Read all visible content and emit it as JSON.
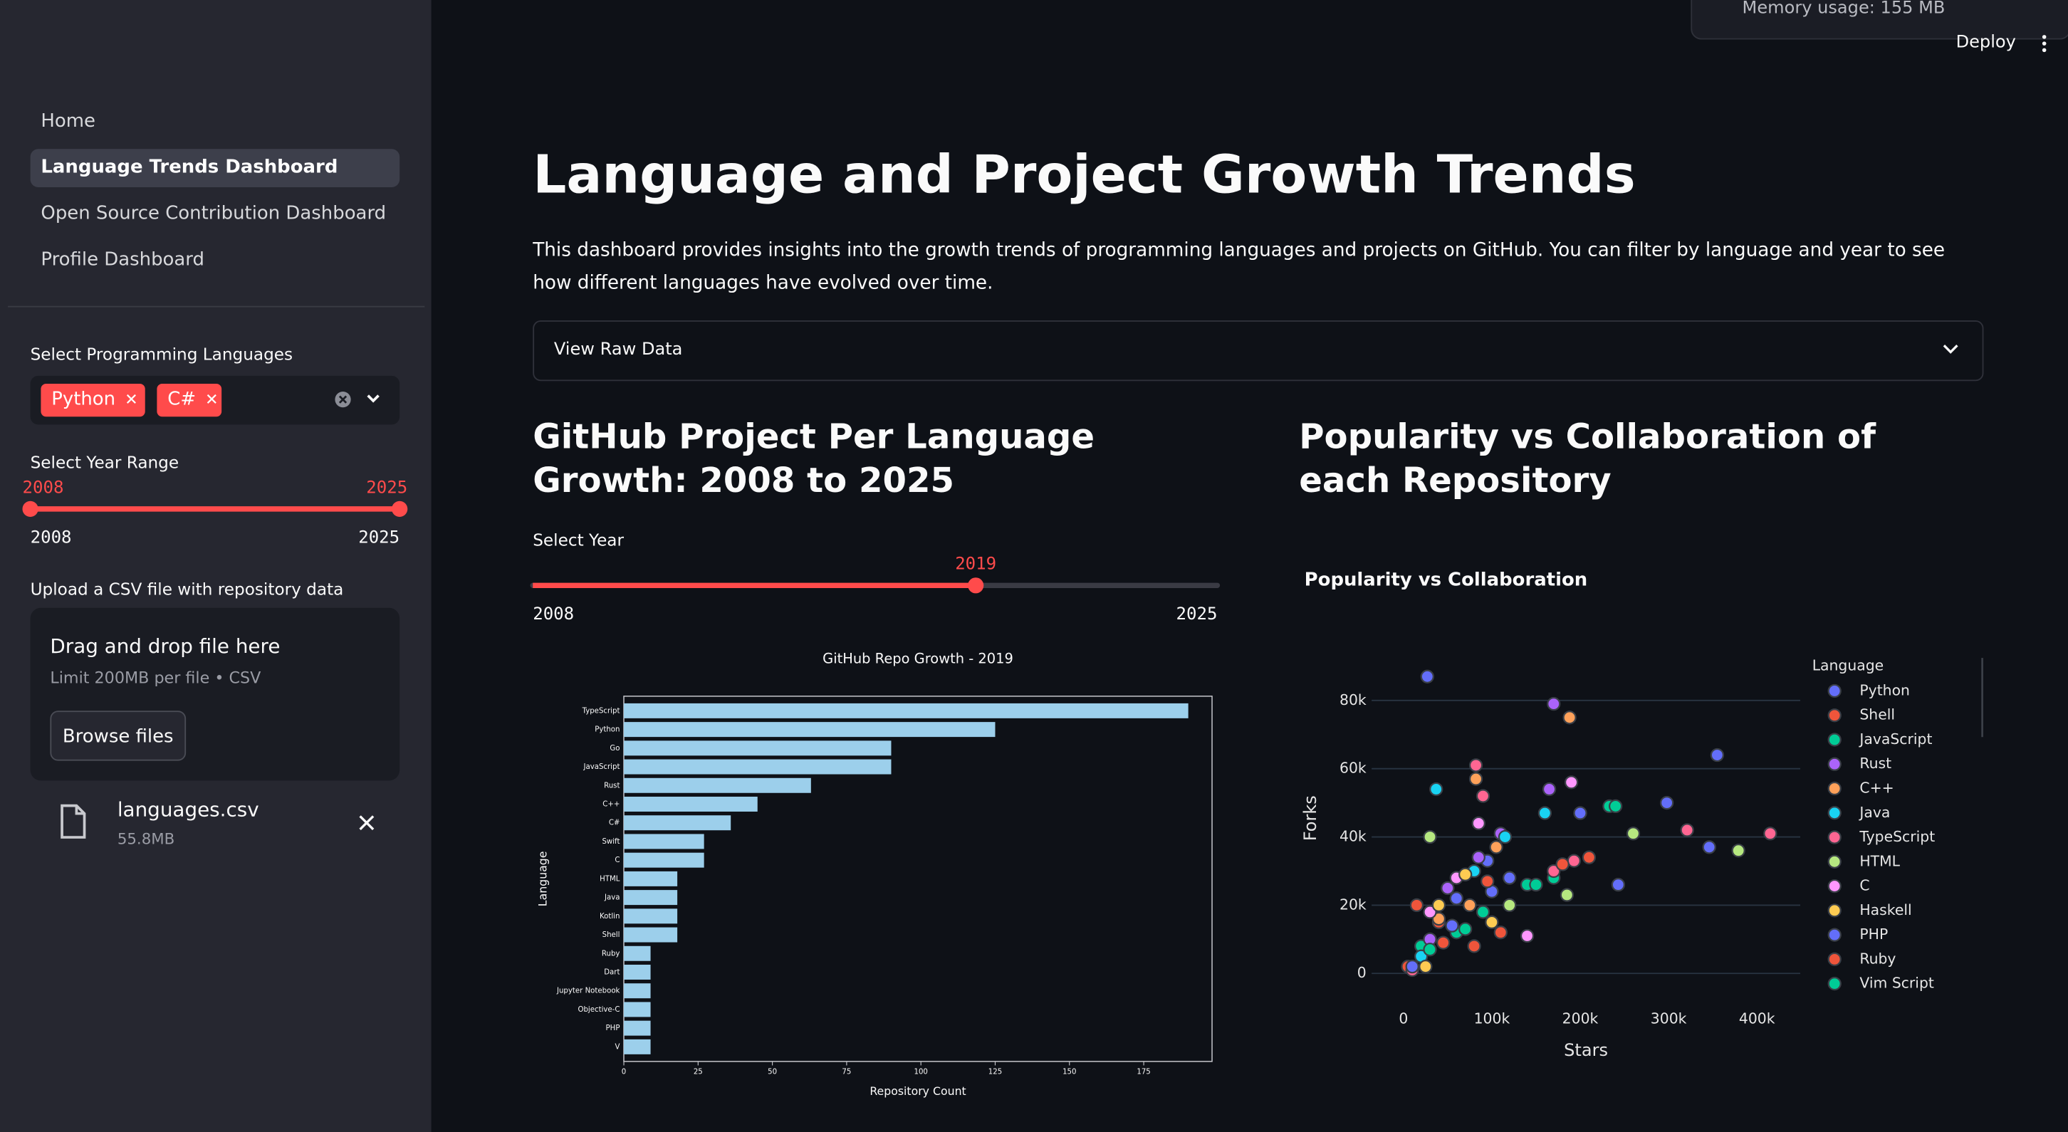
{
  "header": {
    "memory": "Memory usage: 155 MB",
    "deploy": "Deploy"
  },
  "sidebar": {
    "nav": [
      "Home",
      "Language Trends Dashboard",
      "Open Source Contribution Dashboard",
      "Profile Dashboard"
    ],
    "languages_select": {
      "label": "Select Programming Languages",
      "chips": [
        "Python",
        "C#"
      ]
    },
    "year_range": {
      "label": "Select Year Range",
      "min": 2008,
      "max": 2025,
      "values": [
        2008,
        2025
      ]
    },
    "upload": {
      "label": "Upload a CSV file with repository data",
      "drop_text": "Drag and drop file here",
      "limit": "Limit 200MB per file • CSV",
      "button": "Browse files",
      "file_name": "languages.csv",
      "file_size": "55.8MB"
    }
  },
  "main": {
    "title": "Language and Project Growth Trends",
    "description": "This dashboard provides insights into the growth trends of programming languages and projects on GitHub. You can filter by language and year to see how different languages have evolved over time.",
    "expander": "View Raw Data",
    "left_heading": "GitHub Project Per Language Growth: 2008 to 2025",
    "year_slider": {
      "label": "Select Year",
      "value": 2019,
      "min": 2008,
      "max": 2025
    },
    "right_heading": "Popularity vs Collaboration of each Repository"
  },
  "bar_chart": {
    "type": "bar",
    "title": "GitHub Repo Growth - 2019",
    "x_label": "Repository Count",
    "y_label": "Language",
    "color": "#9ccfeb",
    "categories": [
      "TypeScript",
      "Python",
      "Go",
      "JavaScript",
      "Rust",
      "C++",
      "C#",
      "Swift",
      "C",
      "HTML",
      "Java",
      "Kotlin",
      "Shell",
      "Ruby",
      "Dart",
      "Jupyter Notebook",
      "Objective-C",
      "PHP",
      "V"
    ],
    "values": [
      190,
      125,
      90,
      90,
      63,
      45,
      36,
      27,
      27,
      18,
      18,
      18,
      18,
      9,
      9,
      9,
      9,
      9,
      9
    ],
    "xlim": [
      0,
      198
    ],
    "xticks": [
      0,
      25,
      50,
      75,
      100,
      125,
      150,
      175
    ]
  },
  "scatter_chart": {
    "type": "scatter",
    "title": "Popularity vs Collaboration",
    "x_label": "Stars",
    "y_label": "Forks",
    "legend_title": "Language",
    "xlim": [
      -36000,
      449000
    ],
    "ylim": [
      -3000,
      94000
    ],
    "xticks": [
      0,
      {
        "value": 100000,
        "label": "100k"
      },
      {
        "value": 200000,
        "label": "200k"
      },
      {
        "value": 300000,
        "label": "300k"
      },
      {
        "value": 400000,
        "label": "400k"
      }
    ],
    "yticks": [
      0,
      {
        "value": 20000,
        "label": "20k"
      },
      {
        "value": 40000,
        "label": "40k"
      },
      {
        "value": 60000,
        "label": "60k"
      },
      {
        "value": 80000,
        "label": "80k"
      }
    ],
    "grid": true,
    "series": [
      {
        "name": "Python",
        "color": "#636efa",
        "x": [
          27000,
          355000,
          298000,
          346000,
          243000,
          95000,
          60000,
          120000
        ],
        "y": [
          87000,
          64000,
          50000,
          37000,
          26000,
          33000,
          22000,
          28000
        ]
      },
      {
        "name": "Shell",
        "color": "#ef553b",
        "x": [
          40000,
          80000,
          15000,
          110000,
          5000
        ],
        "y": [
          15000,
          8000,
          20000,
          12000,
          2000
        ]
      },
      {
        "name": "JavaScript",
        "color": "#00cc96",
        "x": [
          233000,
          170000,
          60000,
          140000,
          20000,
          90000
        ],
        "y": [
          49000,
          28000,
          12000,
          26000,
          8000,
          18000
        ]
      },
      {
        "name": "Rust",
        "color": "#ab63fa",
        "x": [
          170000,
          110000,
          85000,
          50000,
          30000,
          165000
        ],
        "y": [
          79000,
          41000,
          34000,
          25000,
          10000,
          54000
        ]
      },
      {
        "name": "C++",
        "color": "#ffa15a",
        "x": [
          188000,
          82000,
          75000,
          40000,
          105000
        ],
        "y": [
          75000,
          57000,
          20000,
          16000,
          37000
        ]
      },
      {
        "name": "Java",
        "color": "#19d3f3",
        "x": [
          37000,
          160000,
          80000,
          115000,
          20000
        ],
        "y": [
          54000,
          47000,
          30000,
          40000,
          5000
        ]
      },
      {
        "name": "TypeScript",
        "color": "#ff6692",
        "x": [
          415000,
          321000,
          82000,
          90000,
          193000,
          170000,
          10000
        ],
        "y": [
          41000,
          42000,
          61000,
          52000,
          33000,
          30000,
          1000
        ]
      },
      {
        "name": "HTML",
        "color": "#b6e880",
        "x": [
          379000,
          260000,
          185000,
          30000,
          120000
        ],
        "y": [
          36000,
          41000,
          23000,
          40000,
          20000
        ]
      },
      {
        "name": "C",
        "color": "#ff97ff",
        "x": [
          190000,
          85000,
          30000,
          60000,
          140000
        ],
        "y": [
          56000,
          44000,
          18000,
          28000,
          11000
        ]
      },
      {
        "name": "Haskell",
        "color": "#fecb52",
        "x": [
          70000,
          40000,
          25000,
          100000
        ],
        "y": [
          29000,
          20000,
          2000,
          15000
        ]
      },
      {
        "name": "PHP",
        "color": "#636efa",
        "x": [
          200000,
          100000,
          55000,
          10000
        ],
        "y": [
          47000,
          24000,
          14000,
          2000
        ]
      },
      {
        "name": "Ruby",
        "color": "#ef553b",
        "x": [
          210000,
          180000,
          95000,
          45000
        ],
        "y": [
          34000,
          32000,
          27000,
          9000
        ]
      },
      {
        "name": "Vim Script",
        "color": "#00cc96",
        "x": [
          240000,
          150000,
          30000,
          70000
        ],
        "y": [
          49000,
          26000,
          7000,
          13000
        ]
      }
    ]
  }
}
